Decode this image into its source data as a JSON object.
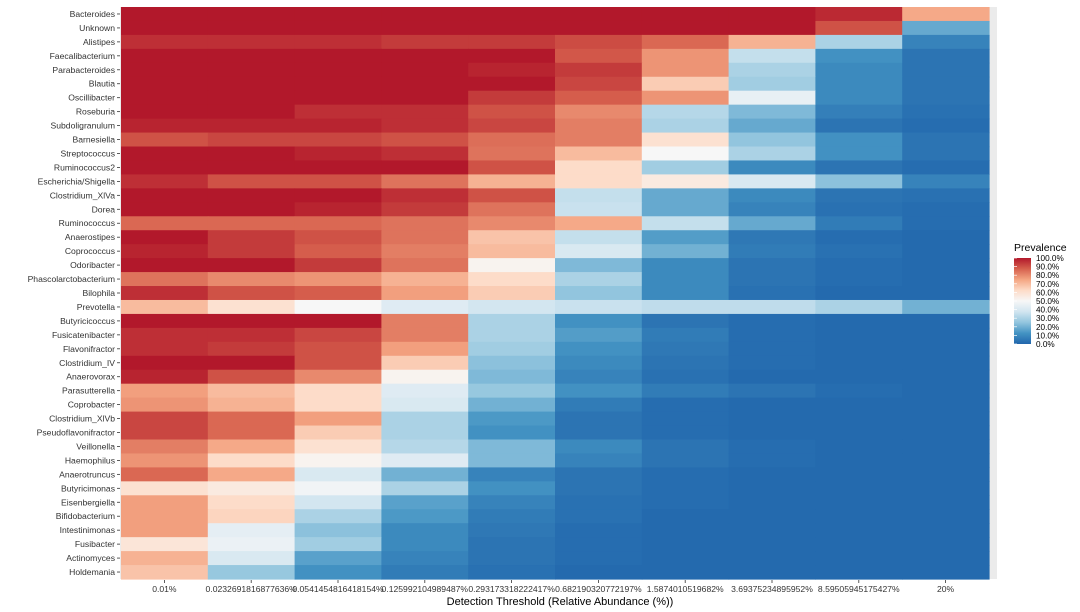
{
  "chart_data": {
    "type": "heatmap",
    "xlabel": "Detection Threshold (Relative Abundance (%))",
    "x_tick_labels": [
      "0.01%",
      "0.0232691816877636%",
      "0.0541454816418154%",
      "0.125992104989487%",
      "0.293173318222417%",
      "0.682190320772197%",
      "1.5874010519682%",
      "3.69375234895952%",
      "8.59505945175427%",
      "20%"
    ],
    "y_categories": [
      "Bacteroides",
      "Unknown",
      "Alistipes",
      "Faecalibacterium",
      "Parabacteroides",
      "Blautia",
      "Oscillibacter",
      "Roseburia",
      "Subdoligranulum",
      "Barnesiella",
      "Streptococcus",
      "Ruminococcus2",
      "Escherichia/Shigella",
      "Clostridium_XlVa",
      "Dorea",
      "Ruminococcus",
      "Anaerostipes",
      "Coprococcus",
      "Odoribacter",
      "Phascolarctobacterium",
      "Bilophila",
      "Prevotella",
      "Butyricicoccus",
      "Fusicatenibacter",
      "Flavonifractor",
      "Clostridium_IV",
      "Anaerovorax",
      "Parasutterella",
      "Coprobacter",
      "Clostridium_XlVb",
      "Pseudoflavonifractor",
      "Veillonella",
      "Haemophilus",
      "Anaerotruncus",
      "Butyricimonas",
      "Eisenbergiella",
      "Bifidobacterium",
      "Intestinimonas",
      "Fusibacter",
      "Actinomyces",
      "Holdemania"
    ],
    "values": [
      [
        100,
        100,
        100,
        100,
        100,
        100,
        100,
        100,
        97,
        74
      ],
      [
        100,
        100,
        100,
        100,
        100,
        100,
        100,
        100,
        90,
        18
      ],
      [
        96,
        96,
        96,
        94,
        94,
        91,
        86,
        72,
        30,
        8
      ],
      [
        100,
        100,
        100,
        100,
        100,
        89,
        78,
        35,
        12,
        4
      ],
      [
        100,
        100,
        100,
        100,
        98,
        94,
        78,
        30,
        10,
        4
      ],
      [
        100,
        100,
        100,
        100,
        100,
        92,
        66,
        28,
        10,
        4
      ],
      [
        100,
        100,
        100,
        100,
        94,
        88,
        78,
        45,
        10,
        4
      ],
      [
        100,
        100,
        96,
        96,
        90,
        80,
        32,
        22,
        7,
        3
      ],
      [
        98,
        98,
        98,
        96,
        92,
        82,
        30,
        18,
        4,
        2
      ],
      [
        90,
        92,
        92,
        90,
        85,
        82,
        60,
        25,
        12,
        4
      ],
      [
        100,
        100,
        98,
        96,
        84,
        70,
        50,
        30,
        12,
        4
      ],
      [
        100,
        100,
        100,
        100,
        90,
        62,
        28,
        10,
        4,
        2
      ],
      [
        96,
        90,
        90,
        84,
        72,
        62,
        56,
        40,
        24,
        8
      ],
      [
        100,
        100,
        100,
        96,
        90,
        35,
        18,
        10,
        4,
        3
      ],
      [
        100,
        100,
        98,
        94,
        84,
        36,
        18,
        8,
        3,
        2
      ],
      [
        86,
        86,
        86,
        84,
        80,
        74,
        35,
        18,
        6,
        2
      ],
      [
        100,
        94,
        90,
        84,
        68,
        35,
        15,
        5,
        2,
        1
      ],
      [
        98,
        94,
        88,
        82,
        70,
        40,
        20,
        6,
        3,
        1
      ],
      [
        100,
        100,
        94,
        84,
        52,
        22,
        10,
        4,
        2,
        1
      ],
      [
        84,
        80,
        78,
        72,
        62,
        30,
        10,
        4,
        2,
        1
      ],
      [
        96,
        90,
        88,
        76,
        66,
        25,
        10,
        3,
        1,
        1
      ],
      [
        70,
        60,
        50,
        42,
        38,
        36,
        34,
        34,
        30,
        20
      ],
      [
        100,
        100,
        100,
        82,
        30,
        12,
        4,
        2,
        1,
        1
      ],
      [
        96,
        96,
        92,
        82,
        30,
        15,
        6,
        2,
        1,
        1
      ],
      [
        96,
        94,
        90,
        76,
        28,
        12,
        5,
        2,
        1,
        1
      ],
      [
        100,
        100,
        90,
        66,
        24,
        10,
        4,
        2,
        1,
        1
      ],
      [
        98,
        90,
        80,
        52,
        22,
        8,
        3,
        1,
        1,
        1
      ],
      [
        76,
        70,
        62,
        42,
        26,
        12,
        6,
        4,
        2,
        1
      ],
      [
        78,
        72,
        62,
        40,
        20,
        6,
        2,
        1,
        1,
        1
      ],
      [
        92,
        86,
        76,
        30,
        14,
        4,
        2,
        1,
        1,
        1
      ],
      [
        92,
        86,
        66,
        30,
        12,
        4,
        2,
        1,
        1,
        1
      ],
      [
        82,
        74,
        60,
        32,
        22,
        10,
        4,
        2,
        1,
        1
      ],
      [
        78,
        62,
        52,
        42,
        22,
        8,
        4,
        2,
        1,
        1
      ],
      [
        86,
        74,
        40,
        20,
        8,
        4,
        2,
        1,
        1,
        1
      ],
      [
        60,
        56,
        48,
        30,
        12,
        4,
        2,
        1,
        1,
        1
      ],
      [
        76,
        62,
        38,
        16,
        8,
        3,
        2,
        1,
        1,
        1
      ],
      [
        76,
        64,
        30,
        14,
        6,
        3,
        1,
        1,
        1,
        1
      ],
      [
        76,
        44,
        24,
        10,
        5,
        2,
        1,
        1,
        1,
        1
      ],
      [
        58,
        46,
        28,
        10,
        4,
        2,
        1,
        1,
        1,
        1
      ],
      [
        72,
        40,
        16,
        8,
        4,
        2,
        1,
        1,
        1,
        1
      ],
      [
        68,
        26,
        12,
        6,
        3,
        1,
        1,
        1,
        1,
        1
      ]
    ],
    "legend": {
      "title": "Prevalence",
      "labels": [
        "100.0%",
        "90.0%",
        "80.0%",
        "70.0%",
        "60.0%",
        "50.0%",
        "40.0%",
        "30.0%",
        "20.0%",
        "10.0%",
        "0.0%"
      ],
      "placement": "right"
    },
    "color_scale": [
      "#2166ac",
      "#4393c3",
      "#92c5de",
      "#d1e5f0",
      "#f7f7f7",
      "#fddbc7",
      "#f4a582",
      "#d6604d",
      "#b2182b"
    ],
    "background": "#ebebeb"
  }
}
